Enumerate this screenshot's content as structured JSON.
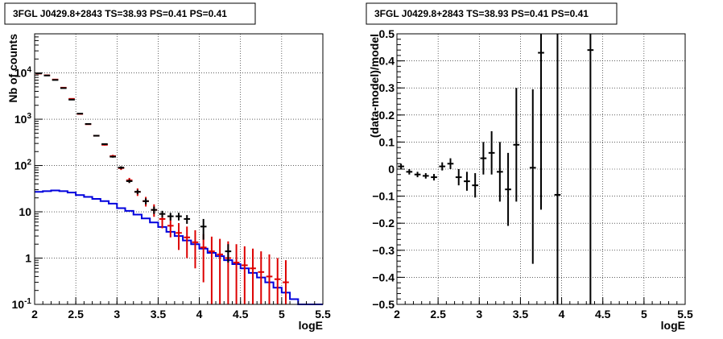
{
  "colors": {
    "data": "#000000",
    "model": "#dd0000",
    "background_model": "#0000dd"
  },
  "chart_data": [
    {
      "type": "histogram",
      "title": "3FGL J0429.8+2843 TS=38.93 PS=0.41 PS=0.41",
      "xlabel": "logE",
      "ylabel": "Nb of counts",
      "xlim": [
        2,
        5.5
      ],
      "ylim": [
        0.1,
        70000
      ],
      "yscale": "log",
      "grid": true,
      "x_ticks": [
        "2",
        "2.5",
        "3",
        "3.5",
        "4",
        "4.5",
        "5",
        "5.5"
      ],
      "y_ticks": [
        {
          "value": 0.1,
          "label": "10^-1"
        },
        {
          "value": 1,
          "label": "1"
        },
        {
          "value": 10,
          "label": "10"
        },
        {
          "value": 100,
          "label": "10^2"
        },
        {
          "value": 1000,
          "label": "10^3"
        },
        {
          "value": 10000,
          "label": "10^4"
        }
      ],
      "bin_width": 0.1,
      "series": [
        {
          "kind": "step",
          "color": "background_model",
          "x_edges": [
            2.0,
            2.1,
            2.2,
            2.3,
            2.4,
            2.5,
            2.6,
            2.7,
            2.8,
            2.9,
            3.0,
            3.1,
            3.2,
            3.3,
            3.4,
            3.5,
            3.6,
            3.7,
            3.8,
            3.9,
            4.0,
            4.1,
            4.2,
            4.3,
            4.4,
            4.5,
            4.6,
            4.7,
            4.8,
            4.9,
            5.0,
            5.1,
            5.2,
            5.3,
            5.4,
            5.5
          ],
          "values": [
            27,
            28,
            29,
            28,
            26,
            23,
            21,
            19,
            17,
            15,
            12,
            10.5,
            8.7,
            7.2,
            5.9,
            4.7,
            3.7,
            3.0,
            2.4,
            2.0,
            1.6,
            1.3,
            1.1,
            0.9,
            0.74,
            0.6,
            0.48,
            0.38,
            0.3,
            0.23,
            0.18,
            0.13,
            0.1,
            0.1,
            0.1
          ]
        },
        {
          "kind": "errorbars",
          "color": "model",
          "x": [
            2.05,
            2.15,
            2.25,
            2.35,
            2.45,
            2.55,
            2.65,
            2.75,
            2.85,
            2.95,
            3.05,
            3.15,
            3.25,
            3.35,
            3.45,
            3.55,
            3.65,
            3.75,
            3.85,
            3.95,
            4.05,
            4.15,
            4.25,
            4.35,
            4.45,
            4.55,
            4.65,
            4.75,
            4.85,
            4.95,
            5.05
          ],
          "y": [
            9700,
            8900,
            7200,
            4800,
            2750,
            1300,
            780,
            440,
            280,
            160,
            88,
            48,
            27,
            17,
            11,
            7,
            5,
            3.5,
            2.8,
            2.2,
            1.7,
            1.4,
            1.2,
            1.0,
            0.8,
            0.7,
            0.6,
            0.5,
            0.4,
            0.35,
            0.3
          ],
          "y_low": [
            9600,
            8800,
            7100,
            4700,
            2700,
            1270,
            760,
            425,
            270,
            150,
            80,
            42,
            22,
            13,
            7.8,
            4.4,
            2.8,
            1.5,
            1.0,
            0.6,
            0.3,
            0.1,
            0.1,
            0.1,
            0.1,
            0.1,
            0.1,
            0.1,
            0.1,
            0.1,
            0.1
          ],
          "y_high": [
            9800,
            9000,
            7300,
            4900,
            2800,
            1330,
            800,
            455,
            290,
            170,
            96,
            54,
            32,
            21,
            14.5,
            10,
            7.5,
            5.7,
            4.8,
            4.0,
            3.3,
            2.9,
            2.6,
            2.3,
            2.0,
            1.8,
            1.6,
            1.4,
            1.2,
            1.0,
            0.9
          ]
        },
        {
          "kind": "errorbars",
          "color": "data",
          "x": [
            2.05,
            2.15,
            2.25,
            2.35,
            2.45,
            2.55,
            2.65,
            2.75,
            2.85,
            2.95,
            3.05,
            3.15,
            3.25,
            3.35,
            3.45,
            3.55,
            3.65,
            3.75,
            3.85,
            4.05,
            4.35
          ],
          "y": [
            9800,
            8800,
            7050,
            4700,
            2650,
            1320,
            790,
            440,
            290,
            155,
            90,
            46,
            27,
            17,
            11,
            9,
            8,
            8,
            7,
            4.8,
            1.4
          ],
          "y_low": [
            9700,
            8700,
            6950,
            4620,
            2600,
            1290,
            770,
            425,
            280,
            148,
            84,
            42,
            24,
            14.5,
            9,
            7.5,
            6.5,
            6.5,
            5.5,
            2.5,
            0.8
          ],
          "y_high": [
            9900,
            8900,
            7150,
            4780,
            2700,
            1350,
            810,
            455,
            300,
            162,
            96,
            50,
            30,
            19.5,
            13,
            10.5,
            9.5,
            9.5,
            8.5,
            7,
            2.0
          ]
        }
      ]
    },
    {
      "type": "scatter",
      "title": "3FGL J0429.8+2843 TS=38.93 PS=0.41 PS=0.41",
      "xlabel": "logE",
      "ylabel": "(data-model)/model",
      "xlim": [
        2,
        5.5
      ],
      "ylim": [
        -0.5,
        0.5
      ],
      "grid": true,
      "x_ticks": [
        "2",
        "2.5",
        "3",
        "3.5",
        "4",
        "4.5",
        "5",
        "5.5"
      ],
      "y_ticks": [
        "−0.5",
        "−0.4",
        "−0.3",
        "−0.2",
        "−0.1",
        "0",
        "0.1",
        "0.2",
        "0.3",
        "0.4",
        "0.5"
      ],
      "x_err": 0.05,
      "series": [
        {
          "kind": "errorbars",
          "color": "data",
          "x": [
            2.05,
            2.15,
            2.25,
            2.35,
            2.45,
            2.55,
            2.65,
            2.75,
            2.85,
            2.95,
            3.05,
            3.15,
            3.25,
            3.35,
            3.45,
            3.65,
            3.75,
            3.95,
            4.35
          ],
          "y": [
            0.01,
            -0.01,
            -0.02,
            -0.025,
            -0.03,
            0.01,
            0.02,
            -0.03,
            -0.045,
            -0.06,
            0.04,
            0.06,
            -0.01,
            -0.075,
            0.09,
            0.005,
            0.43,
            -0.095,
            0.44
          ],
          "y_err_low": [
            0.01,
            0.01,
            0.01,
            0.01,
            0.012,
            0.015,
            0.02,
            0.03,
            0.035,
            0.045,
            0.06,
            0.08,
            0.11,
            0.135,
            0.21,
            0.355,
            0.58,
            0.41,
            0.94
          ],
          "y_err_high": [
            0.01,
            0.01,
            0.01,
            0.01,
            0.012,
            0.015,
            0.02,
            0.03,
            0.035,
            0.045,
            0.06,
            0.08,
            0.11,
            0.135,
            0.21,
            0.29,
            0.07,
            0.6,
            0.06
          ]
        }
      ]
    }
  ]
}
